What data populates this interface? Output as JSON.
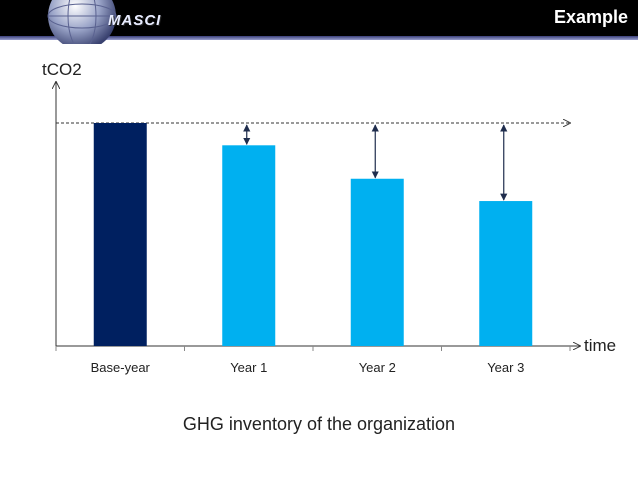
{
  "header": {
    "title": "Example",
    "logo_text": "MASCI"
  },
  "colors": {
    "base_bar": "#002060",
    "year_bar": "#00b0f0",
    "header_bg": "#000000"
  },
  "caption": "GHG inventory of the organization",
  "chart_data": {
    "type": "bar",
    "title": "",
    "xlabel": "time",
    "ylabel": "tCO2",
    "categories": [
      "Base-year",
      "Year 1",
      "Year 2",
      "Year 3"
    ],
    "values": [
      100,
      90,
      75,
      65
    ],
    "ylim": [
      0,
      100
    ],
    "reference_line": "base-year level",
    "grid": false,
    "legend": "none"
  }
}
